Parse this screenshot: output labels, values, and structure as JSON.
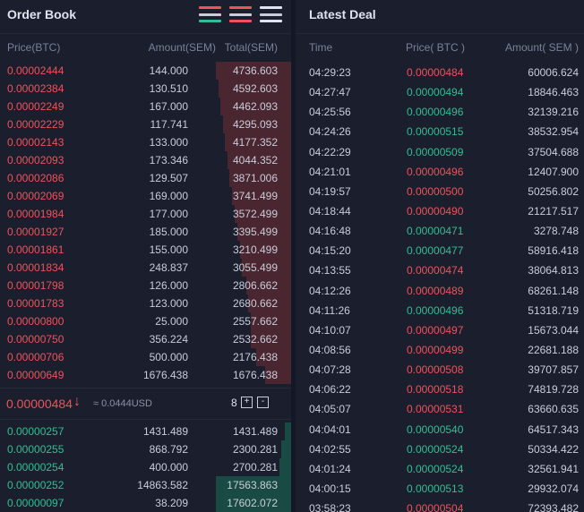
{
  "order_book": {
    "title": "Order Book",
    "views": [
      {
        "name": "both-view-icon",
        "colors": [
          "#f0525a",
          "#2fbf94"
        ]
      },
      {
        "name": "sell-view-icon",
        "colors": [
          "#f0525a",
          "#f0525a"
        ]
      },
      {
        "name": "buy-view-icon",
        "colors": [
          "#dfe3ee",
          "#dfe3ee"
        ]
      }
    ],
    "columns": {
      "price": "Price(BTC)",
      "amount": "Amount(SEM)",
      "total": "Total(SEM)"
    },
    "asks": [
      {
        "price": "0.00002444",
        "amount": "144.000",
        "total": "4736.603",
        "depth": 1.0
      },
      {
        "price": "0.00002384",
        "amount": "130.510",
        "total": "4592.603",
        "depth": 0.97
      },
      {
        "price": "0.00002249",
        "amount": "167.000",
        "total": "4462.093",
        "depth": 0.94
      },
      {
        "price": "0.00002229",
        "amount": "117.741",
        "total": "4295.093",
        "depth": 0.91
      },
      {
        "price": "0.00002143",
        "amount": "133.000",
        "total": "4177.352",
        "depth": 0.88
      },
      {
        "price": "0.00002093",
        "amount": "173.346",
        "total": "4044.352",
        "depth": 0.85
      },
      {
        "price": "0.00002086",
        "amount": "129.507",
        "total": "3871.006",
        "depth": 0.82
      },
      {
        "price": "0.00002069",
        "amount": "169.000",
        "total": "3741.499",
        "depth": 0.79
      },
      {
        "price": "0.00001984",
        "amount": "177.000",
        "total": "3572.499",
        "depth": 0.75
      },
      {
        "price": "0.00001927",
        "amount": "185.000",
        "total": "3395.499",
        "depth": 0.72
      },
      {
        "price": "0.00001861",
        "amount": "155.000",
        "total": "3210.499",
        "depth": 0.68
      },
      {
        "price": "0.00001834",
        "amount": "248.837",
        "total": "3055.499",
        "depth": 0.65
      },
      {
        "price": "0.00001798",
        "amount": "126.000",
        "total": "2806.662",
        "depth": 0.59
      },
      {
        "price": "0.00001783",
        "amount": "123.000",
        "total": "2680.662",
        "depth": 0.57
      },
      {
        "price": "0.00000800",
        "amount": "25.000",
        "total": "2557.662",
        "depth": 0.54
      },
      {
        "price": "0.00000750",
        "amount": "356.224",
        "total": "2532.662",
        "depth": 0.53
      },
      {
        "price": "0.00000706",
        "amount": "500.000",
        "total": "2176.438",
        "depth": 0.46
      },
      {
        "price": "0.00000649",
        "amount": "1676.438",
        "total": "1676.438",
        "depth": 0.35
      }
    ],
    "last_price": "0.00000484",
    "last_price_usd": "≈ 0.0444USD",
    "precision": "8",
    "precision_plus": "+",
    "precision_minus": "-",
    "bids": [
      {
        "price": "0.00000257",
        "amount": "1431.489",
        "total": "1431.489",
        "depth": 0.08
      },
      {
        "price": "0.00000255",
        "amount": "868.792",
        "total": "2300.281",
        "depth": 0.13
      },
      {
        "price": "0.00000254",
        "amount": "400.000",
        "total": "2700.281",
        "depth": 0.15
      },
      {
        "price": "0.00000252",
        "amount": "14863.582",
        "total": "17563.863",
        "depth": 1.0
      },
      {
        "price": "0.00000097",
        "amount": "38.209",
        "total": "17602.072",
        "depth": 1.0
      }
    ]
  },
  "latest_deal": {
    "title": "Latest Deal",
    "columns": {
      "time": "Time",
      "price": "Price( BTC )",
      "amount": "Amount( SEM )"
    },
    "rows": [
      {
        "time": "04:29:23",
        "price": "0.00000484",
        "amount": "60006.624",
        "side": "sell"
      },
      {
        "time": "04:27:47",
        "price": "0.00000494",
        "amount": "18846.463",
        "side": "buy"
      },
      {
        "time": "04:25:56",
        "price": "0.00000496",
        "amount": "32139.216",
        "side": "buy"
      },
      {
        "time": "04:24:26",
        "price": "0.00000515",
        "amount": "38532.954",
        "side": "buy"
      },
      {
        "time": "04:22:29",
        "price": "0.00000509",
        "amount": "37504.688",
        "side": "buy"
      },
      {
        "time": "04:21:01",
        "price": "0.00000496",
        "amount": "12407.900",
        "side": "sell"
      },
      {
        "time": "04:19:57",
        "price": "0.00000500",
        "amount": "50256.802",
        "side": "sell"
      },
      {
        "time": "04:18:44",
        "price": "0.00000490",
        "amount": "21217.517",
        "side": "sell"
      },
      {
        "time": "04:16:48",
        "price": "0.00000471",
        "amount": "3278.748",
        "side": "buy"
      },
      {
        "time": "04:15:20",
        "price": "0.00000477",
        "amount": "58916.418",
        "side": "buy"
      },
      {
        "time": "04:13:55",
        "price": "0.00000474",
        "amount": "38064.813",
        "side": "sell"
      },
      {
        "time": "04:12:26",
        "price": "0.00000489",
        "amount": "68261.148",
        "side": "sell"
      },
      {
        "time": "04:11:26",
        "price": "0.00000496",
        "amount": "51318.719",
        "side": "buy"
      },
      {
        "time": "04:10:07",
        "price": "0.00000497",
        "amount": "15673.044",
        "side": "sell"
      },
      {
        "time": "04:08:56",
        "price": "0.00000499",
        "amount": "22681.188",
        "side": "sell"
      },
      {
        "time": "04:07:28",
        "price": "0.00000508",
        "amount": "39707.857",
        "side": "sell"
      },
      {
        "time": "04:06:22",
        "price": "0.00000518",
        "amount": "74819.728",
        "side": "sell"
      },
      {
        "time": "04:05:07",
        "price": "0.00000531",
        "amount": "63660.635",
        "side": "sell"
      },
      {
        "time": "04:04:01",
        "price": "0.00000540",
        "amount": "64517.343",
        "side": "buy"
      },
      {
        "time": "04:02:55",
        "price": "0.00000524",
        "amount": "50334.422",
        "side": "buy"
      },
      {
        "time": "04:01:24",
        "price": "0.00000524",
        "amount": "32561.941",
        "side": "buy"
      },
      {
        "time": "04:00:15",
        "price": "0.00000513",
        "amount": "29932.074",
        "side": "buy"
      },
      {
        "time": "03:58:23",
        "price": "0.00000504",
        "amount": "72393.482",
        "side": "sell"
      }
    ]
  },
  "colors": {
    "sell": "#f0525a",
    "buy": "#2fbf94",
    "sell_depth": "#4a2630",
    "buy_depth": "#1a4a44"
  }
}
